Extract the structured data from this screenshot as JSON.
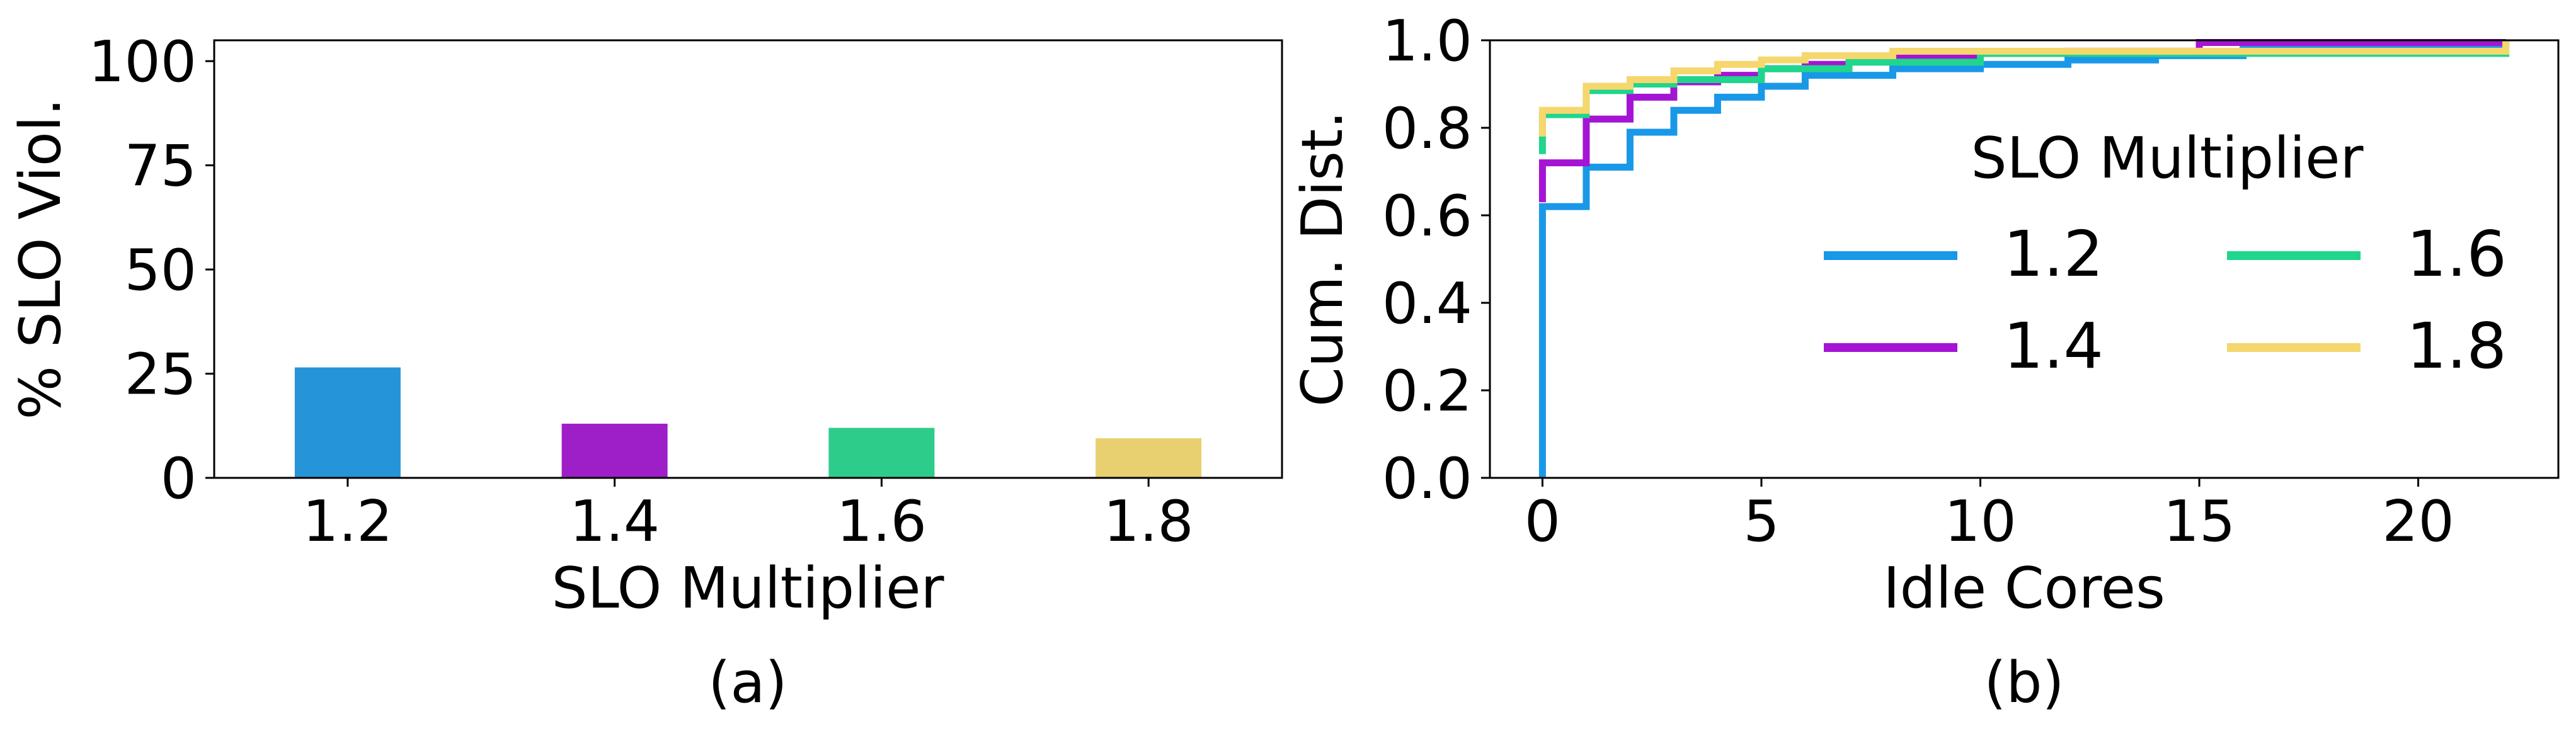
{
  "chart_data": [
    {
      "type": "bar",
      "panel_label": "(a)",
      "xlabel": "SLO Multiplier",
      "ylabel": "% SLO Viol.",
      "categories": [
        "1.2",
        "1.4",
        "1.6",
        "1.8"
      ],
      "values": [
        26.5,
        13,
        12,
        9.5
      ],
      "colors": [
        "#2694d9",
        "#9e1fc8",
        "#2ecc8a",
        "#e8d070"
      ],
      "ylim": [
        0,
        105
      ],
      "yticks": [
        0,
        25,
        50,
        75,
        100
      ],
      "grid": false
    },
    {
      "type": "line",
      "step": true,
      "panel_label": "(b)",
      "xlabel": "Idle Cores",
      "ylabel": "Cum. Dist.",
      "xlim": [
        -1.2,
        23.2
      ],
      "ylim": [
        0,
        1
      ],
      "xticks": [
        0,
        5,
        10,
        15,
        20
      ],
      "yticks": [
        "0.0",
        "0.2",
        "0.4",
        "0.6",
        "0.8",
        "1.0"
      ],
      "grid": false,
      "legend": {
        "title": "SLO Multiplier",
        "placement": "center-right",
        "columns": 2
      },
      "series": [
        {
          "name": "1.2",
          "color": "#1a98e8",
          "x": [
            0,
            0,
            1,
            2,
            3,
            4,
            5,
            6,
            8,
            10,
            12,
            14,
            16,
            18,
            20,
            22
          ],
          "y": [
            0,
            0.62,
            0.71,
            0.79,
            0.84,
            0.87,
            0.895,
            0.92,
            0.935,
            0.945,
            0.955,
            0.965,
            0.98,
            0.985,
            0.99,
            0.995
          ]
        },
        {
          "name": "1.4",
          "color": "#a514d4",
          "x": [
            0,
            0,
            1,
            2,
            3,
            4,
            5,
            6,
            7,
            8,
            10,
            12,
            15,
            22
          ],
          "y": [
            0.63,
            0.72,
            0.82,
            0.87,
            0.905,
            0.92,
            0.935,
            0.945,
            0.96,
            0.965,
            0.97,
            0.975,
            0.995,
            1.0
          ]
        },
        {
          "name": "1.6",
          "color": "#1fd68c",
          "x": [
            0,
            0,
            1,
            2,
            3,
            5,
            7,
            10,
            22
          ],
          "y": [
            0.74,
            0.83,
            0.885,
            0.9,
            0.91,
            0.935,
            0.95,
            0.97,
            1.0
          ]
        },
        {
          "name": "1.8",
          "color": "#f5d76e",
          "x": [
            0,
            0,
            1,
            2,
            3,
            4,
            5,
            6,
            8,
            22
          ],
          "y": [
            0.78,
            0.84,
            0.895,
            0.91,
            0.93,
            0.945,
            0.955,
            0.965,
            0.975,
            1.0
          ]
        }
      ]
    }
  ]
}
